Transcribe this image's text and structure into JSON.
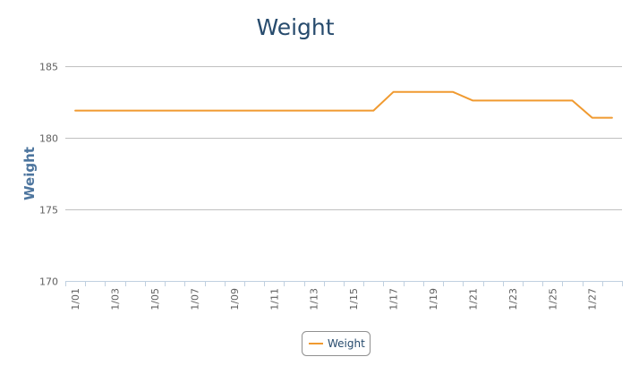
{
  "chart_data": {
    "type": "line",
    "title": "Weight",
    "xlabel": "",
    "ylabel": "Weight",
    "ylim": [
      170,
      185
    ],
    "yticks": [
      170,
      175,
      180,
      185
    ],
    "x": [
      "1/01",
      "1/02",
      "1/03",
      "1/04",
      "1/05",
      "1/06",
      "1/07",
      "1/08",
      "1/09",
      "1/10",
      "1/11",
      "1/12",
      "1/13",
      "1/14",
      "1/15",
      "1/16",
      "1/17",
      "1/18",
      "1/19",
      "1/20",
      "1/21",
      "1/22",
      "1/23",
      "1/24",
      "1/25",
      "1/26",
      "1/27",
      "1/28"
    ],
    "xtick_labels": [
      "1/01",
      "1/03",
      "1/05",
      "1/07",
      "1/09",
      "1/11",
      "1/13",
      "1/15",
      "1/17",
      "1/19",
      "1/21",
      "1/23",
      "1/25",
      "1/27"
    ],
    "series": [
      {
        "name": "Weight",
        "color": "#f09a30",
        "values": [
          181.9,
          181.9,
          181.9,
          181.9,
          181.9,
          181.9,
          181.9,
          181.9,
          181.9,
          181.9,
          181.9,
          181.9,
          181.9,
          181.9,
          181.9,
          181.9,
          183.2,
          183.2,
          183.2,
          183.2,
          182.6,
          182.6,
          182.6,
          182.6,
          182.6,
          182.6,
          181.4,
          181.4
        ]
      }
    ],
    "grid": true,
    "legend": "bottom-center"
  }
}
